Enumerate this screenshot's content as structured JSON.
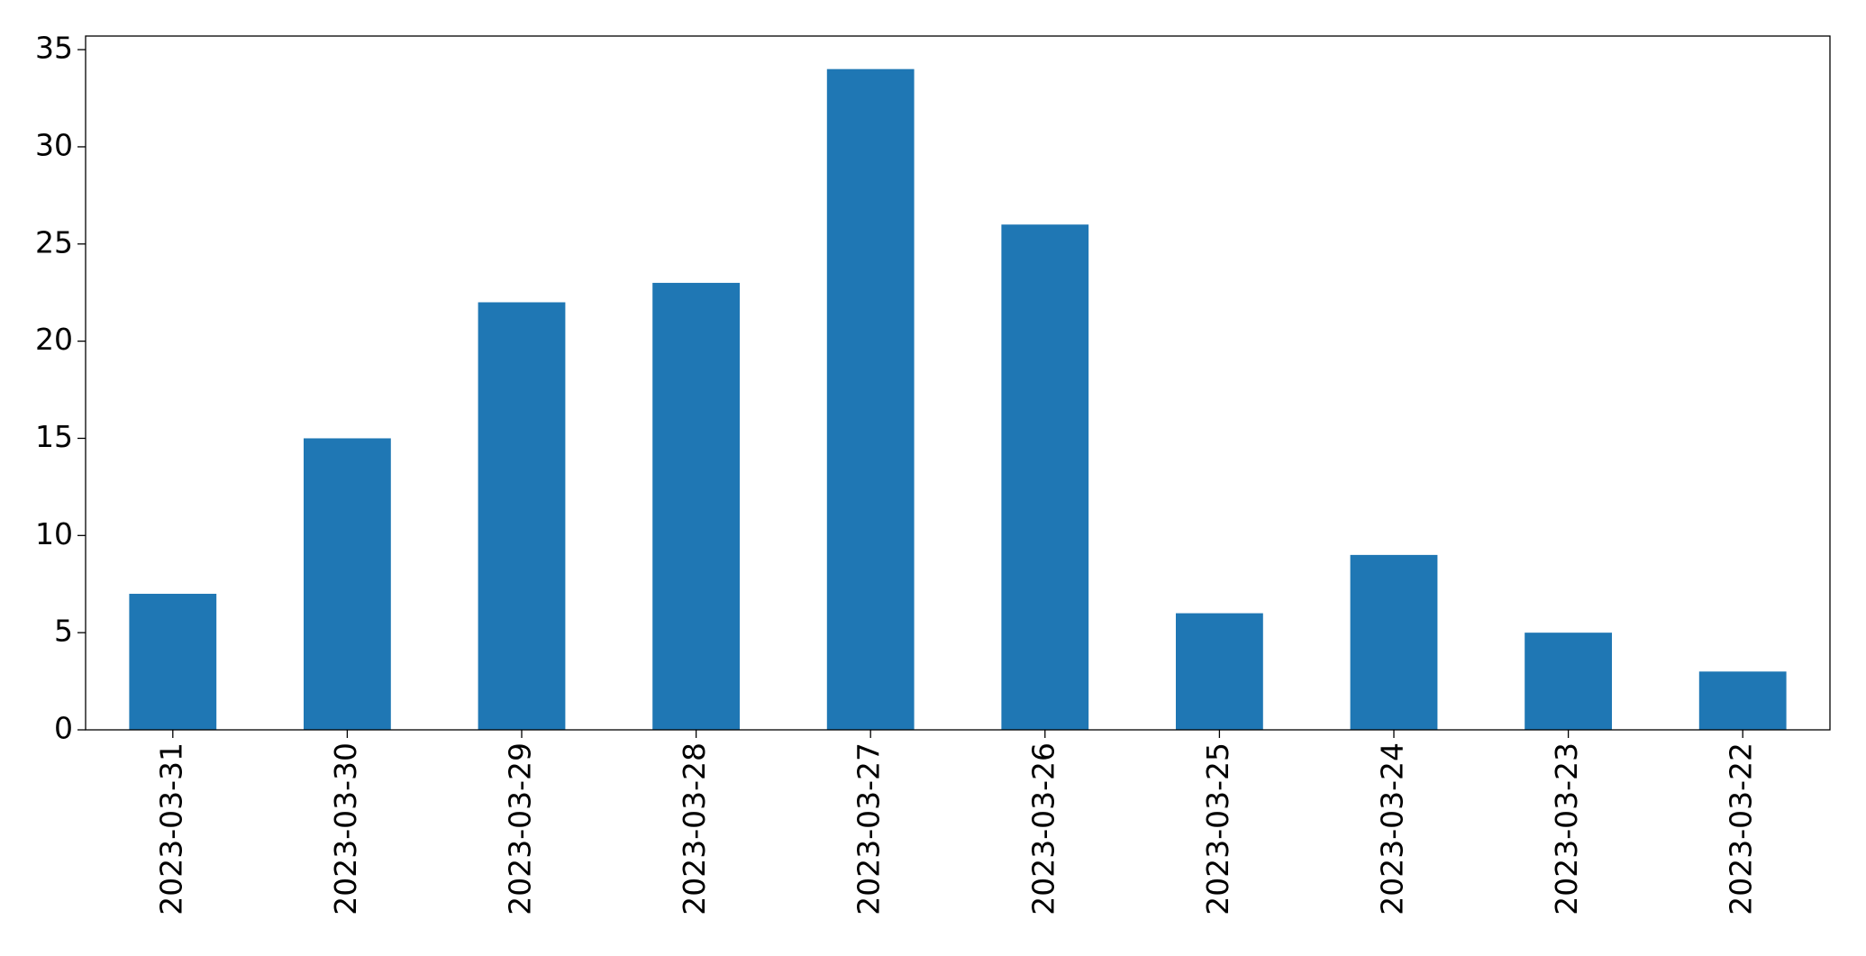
{
  "chart_data": {
    "type": "bar",
    "categories": [
      "2023-03-31",
      "2023-03-30",
      "2023-03-29",
      "2023-03-28",
      "2023-03-27",
      "2023-03-26",
      "2023-03-25",
      "2023-03-24",
      "2023-03-23",
      "2023-03-22"
    ],
    "values": [
      7,
      15,
      22,
      23,
      34,
      26,
      6,
      9,
      5,
      3
    ],
    "color": "#1f77b4",
    "ylim": [
      0,
      35.7
    ],
    "yticks": [
      0,
      5,
      10,
      15,
      20,
      25,
      30,
      35
    ],
    "grid": false
  }
}
